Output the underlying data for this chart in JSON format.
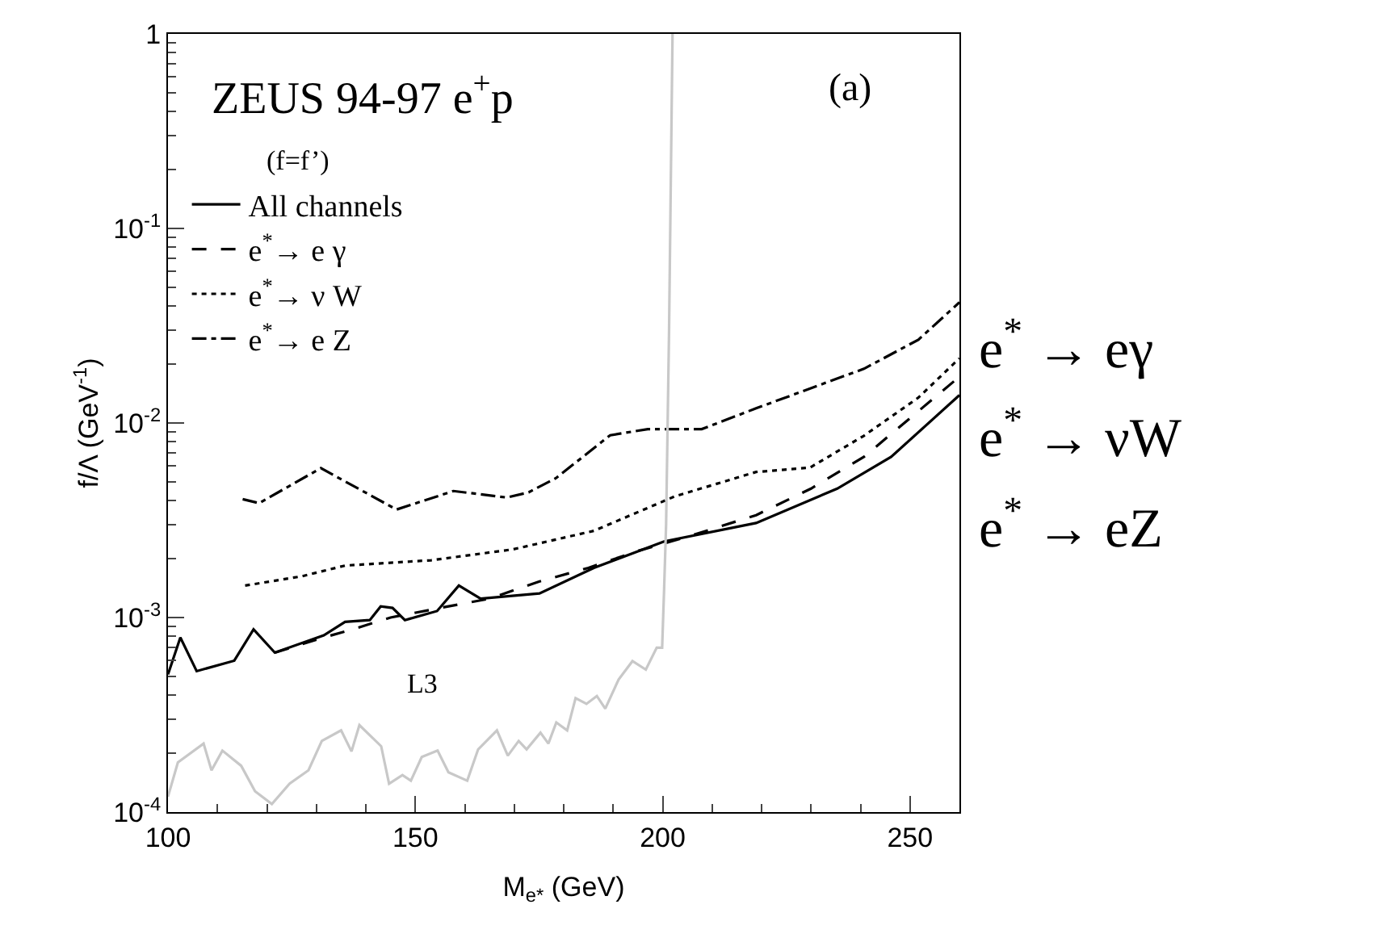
{
  "chart_data": {
    "type": "line",
    "xlabel": "M$_{e*}$ (GeV)",
    "ylabel": "f/Λ (GeV$^{-1}$)",
    "xlim": [
      100,
      260
    ],
    "xticks": [
      100,
      150,
      200,
      250
    ],
    "ylim": [
      0.0001,
      1
    ],
    "log": "y",
    "yticks": [
      {
        "value": 0.0001,
        "label": "10$^{-4}$"
      },
      {
        "value": 0.001,
        "label": "10$^{-3}$"
      },
      {
        "value": 0.01,
        "label": "10$^{-2}$"
      },
      {
        "value": 0.1,
        "label": "10$^{-1}$"
      },
      1
    ],
    "legend": "top left",
    "marker": "none",
    "series": [
      {
        "name": "All channels",
        "color": "#000000",
        "line_style": "solid",
        "x": [
          100,
          102.5,
          105.8,
          113.4,
          117.3,
          121.6,
          131.5,
          135.8,
          140.8,
          143,
          145.4,
          147.9,
          154.4,
          158.8,
          163.2,
          175.1,
          186.1,
          200.3,
          218.9,
          235.3,
          246.2,
          260
        ],
        "values": [
          0.00051,
          0.00079,
          0.00053,
          0.0006,
          0.00087,
          0.00066,
          0.00081,
          0.00095,
          0.00097,
          0.00114,
          0.00112,
          0.00097,
          0.00108,
          0.00146,
          0.00125,
          0.00133,
          0.0018,
          0.00246,
          0.00306,
          0.0046,
          0.0067,
          0.0139
        ]
      },
      {
        "name": "e$^{*}$→ e γ",
        "color": "#000000",
        "line_style": "dashed",
        "x": [
          121.6,
          130,
          138,
          145,
          155,
          165,
          175,
          185,
          195,
          205,
          218.9,
          230,
          240.7,
          260
        ],
        "values": [
          0.00066,
          0.00077,
          0.00088,
          0.001,
          0.00112,
          0.00125,
          0.00153,
          0.0018,
          0.0022,
          0.0026,
          0.00336,
          0.0046,
          0.0067,
          0.0173
        ]
      },
      {
        "name": "e$^{*}$→ ν W",
        "color": "#000000",
        "line_style": "dotted",
        "x": [
          115.6,
          127.1,
          135.8,
          153.2,
          169.7,
          186.1,
          202.5,
          218.9,
          229.8,
          240.7,
          251.7,
          260
        ],
        "values": [
          0.00146,
          0.00163,
          0.00185,
          0.00197,
          0.00224,
          0.00279,
          0.0042,
          0.0056,
          0.0059,
          0.0086,
          0.0135,
          0.0215
        ]
      },
      {
        "name": "e$^{*}$→ e Z",
        "color": "#000000",
        "line_style": "dashdot",
        "x": [
          115.1,
          118.4,
          130.9,
          146.2,
          157.7,
          168.5,
          172.9,
          178.4,
          189.4,
          197,
          207.9,
          218.9,
          240.7,
          251.7,
          260
        ],
        "values": [
          0.00406,
          0.00387,
          0.00586,
          0.00359,
          0.00447,
          0.00414,
          0.0044,
          0.0052,
          0.00865,
          0.0093,
          0.0093,
          0.0119,
          0.019,
          0.0268,
          0.0417
        ]
      },
      {
        "name": "L3",
        "color": "#c8c8c8",
        "line_style": "solid",
        "x": [
          100,
          102,
          107.2,
          108.8,
          111,
          114.8,
          117.6,
          121,
          124.6,
          128.4,
          131.1,
          135,
          137.1,
          138.7,
          143.1,
          144.7,
          147.4,
          149.1,
          151.3,
          154.5,
          156.7,
          160.5,
          162.7,
          166.5,
          168.7,
          170.9,
          172.5,
          175.3,
          176.9,
          178.5,
          180.7,
          182.4,
          184.6,
          186.7,
          188.4,
          191.1,
          193.9,
          196.6,
          198.8,
          199.9,
          200.3,
          200.7,
          201.3,
          202
        ],
        "values": [
          0.00012,
          0.00018,
          0.000225,
          0.000164,
          0.000207,
          0.000173,
          0.000128,
          0.00011,
          0.00014,
          0.000164,
          0.000232,
          0.000263,
          0.000205,
          0.00028,
          0.000218,
          0.00014,
          0.000155,
          0.000145,
          0.000192,
          0.000207,
          0.00016,
          0.000145,
          0.00021,
          0.000263,
          0.000195,
          0.000232,
          0.00021,
          0.000256,
          0.000225,
          0.000289,
          0.000263,
          0.000385,
          0.00036,
          0.000395,
          0.00034,
          0.00048,
          0.000597,
          0.00054,
          0.0007,
          0.0007,
          0.0014,
          0.003,
          0.03,
          1
        ]
      }
    ],
    "annotations": [
      "ZEUS 94-97 e$^{+}$p",
      "(f=f’)",
      "(a)",
      "e$^{*}$ → eγ",
      "e$^{*}$ → νW",
      "e$^{*}$ → eZ"
    ]
  }
}
